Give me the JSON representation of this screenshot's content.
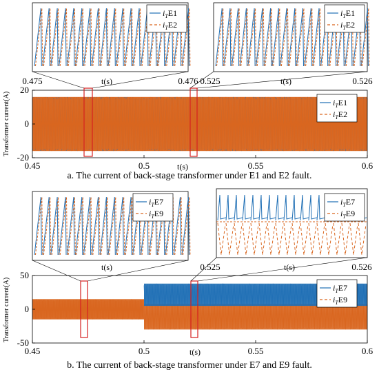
{
  "captions": {
    "a": "a. The current of back-stage transformer under E1 and E2 fault.",
    "b": "b. The current of back-stage transformer under E7 and E9 fault."
  },
  "colors": {
    "series1": "#1f6fb5",
    "series2": "#d9661f",
    "zoom_box": "#d62020"
  },
  "chart_data": [
    {
      "id": "a-main",
      "type": "line",
      "ylabel": "Transformer current(A)",
      "xlabel": "t(s)",
      "xlim": [
        0.45,
        0.6
      ],
      "ylim": [
        -20,
        20
      ],
      "xticks": [
        "0.45",
        "0.5",
        "0.55",
        "0.6"
      ],
      "yticks": [
        "20",
        "0",
        "-20"
      ],
      "legend": {
        "position": "top-right"
      },
      "series": [
        {
          "name": "E1",
          "amplitude": 16,
          "offset": 0
        },
        {
          "name": "E2",
          "amplitude": 16,
          "offset": 0
        }
      ],
      "zoom_windows": [
        [
          0.475,
          0.476
        ],
        [
          0.525,
          0.526
        ]
      ]
    },
    {
      "id": "a-zoom-1",
      "type": "line",
      "xlabel": "t(s)",
      "xlim": [
        0.475,
        0.476
      ],
      "xticks": [
        "0.475",
        "0.476"
      ],
      "legend": {
        "position": "top-right"
      },
      "series": [
        {
          "name": "E1"
        },
        {
          "name": "E2"
        }
      ]
    },
    {
      "id": "a-zoom-2",
      "type": "line",
      "xlabel": "t(s)",
      "xlim": [
        0.525,
        0.526
      ],
      "xticks": [
        "0.525",
        "0.526"
      ],
      "legend": {
        "position": "top-right"
      },
      "series": [
        {
          "name": "E1"
        },
        {
          "name": "E2"
        }
      ]
    },
    {
      "id": "b-main",
      "type": "line",
      "ylabel": "Transformer current(A)",
      "xlabel": "t(s)",
      "xlim": [
        0.45,
        0.6
      ],
      "ylim": [
        -50,
        50
      ],
      "xticks": [
        "0.45",
        "0.5",
        "0.55",
        "0.6"
      ],
      "yticks": [
        "50",
        "0",
        "-50"
      ],
      "legend": {
        "position": "top-right"
      },
      "series": [
        {
          "name": "E7",
          "before_fault": [
            -15,
            15
          ],
          "after_fault": [
            5,
            38
          ]
        },
        {
          "name": "E9",
          "before_fault": [
            -15,
            15
          ],
          "after_fault": [
            -30,
            8
          ]
        }
      ],
      "fault_time": 0.5,
      "zoom_windows": [
        [
          0.474,
          0.476
        ],
        [
          0.525,
          0.526
        ]
      ]
    },
    {
      "id": "b-zoom-1",
      "type": "line",
      "xlabel": "t(s)",
      "legend": {
        "position": "top-right"
      },
      "series": [
        {
          "name": "E7"
        },
        {
          "name": "E9"
        }
      ]
    },
    {
      "id": "b-zoom-2",
      "type": "line",
      "xlabel": "t(s)",
      "xlim": [
        0.525,
        0.526
      ],
      "xticks": [
        "0.525",
        "0.526"
      ],
      "legend": {
        "position": "top-right"
      },
      "series": [
        {
          "name": "E7"
        },
        {
          "name": "E9"
        }
      ]
    }
  ]
}
